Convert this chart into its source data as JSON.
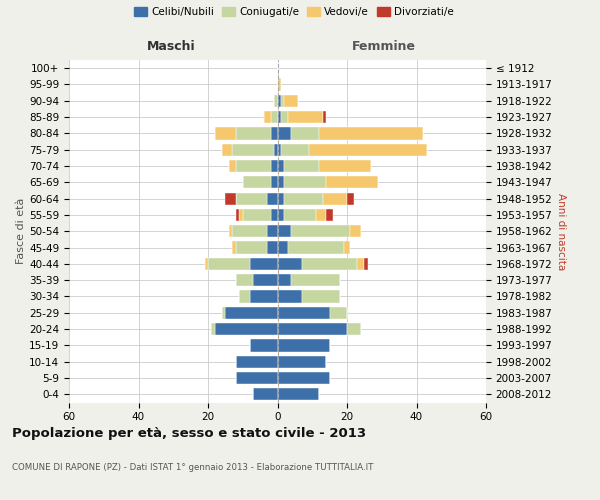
{
  "age_groups": [
    "0-4",
    "5-9",
    "10-14",
    "15-19",
    "20-24",
    "25-29",
    "30-34",
    "35-39",
    "40-44",
    "45-49",
    "50-54",
    "55-59",
    "60-64",
    "65-69",
    "70-74",
    "75-79",
    "80-84",
    "85-89",
    "90-94",
    "95-99",
    "100+"
  ],
  "birth_years": [
    "2008-2012",
    "2003-2007",
    "1998-2002",
    "1993-1997",
    "1988-1992",
    "1983-1987",
    "1978-1982",
    "1973-1977",
    "1968-1972",
    "1963-1967",
    "1958-1962",
    "1953-1957",
    "1948-1952",
    "1943-1947",
    "1938-1942",
    "1933-1937",
    "1928-1932",
    "1923-1927",
    "1918-1922",
    "1913-1917",
    "≤ 1912"
  ],
  "maschi": {
    "celibi": [
      7,
      12,
      12,
      8,
      18,
      15,
      8,
      7,
      8,
      3,
      3,
      2,
      3,
      2,
      2,
      1,
      2,
      0,
      0,
      0,
      0
    ],
    "coniugati": [
      0,
      0,
      0,
      0,
      1,
      1,
      3,
      5,
      12,
      9,
      10,
      8,
      9,
      8,
      10,
      12,
      10,
      2,
      1,
      0,
      0
    ],
    "vedovi": [
      0,
      0,
      0,
      0,
      0,
      0,
      0,
      0,
      1,
      1,
      1,
      1,
      0,
      0,
      2,
      3,
      6,
      2,
      0,
      0,
      0
    ],
    "divorziati": [
      0,
      0,
      0,
      0,
      0,
      0,
      0,
      0,
      0,
      0,
      0,
      1,
      3,
      0,
      0,
      0,
      0,
      0,
      0,
      0,
      0
    ]
  },
  "femmine": {
    "nubili": [
      12,
      15,
      14,
      15,
      20,
      15,
      7,
      4,
      7,
      3,
      4,
      2,
      2,
      2,
      2,
      1,
      4,
      1,
      1,
      0,
      0
    ],
    "coniugate": [
      0,
      0,
      0,
      0,
      4,
      5,
      11,
      14,
      16,
      16,
      17,
      9,
      11,
      12,
      10,
      8,
      8,
      2,
      1,
      0,
      0
    ],
    "vedove": [
      0,
      0,
      0,
      0,
      0,
      0,
      0,
      0,
      2,
      2,
      3,
      3,
      7,
      15,
      15,
      34,
      30,
      10,
      4,
      1,
      0
    ],
    "divorziate": [
      0,
      0,
      0,
      0,
      0,
      0,
      0,
      0,
      1,
      0,
      0,
      2,
      2,
      0,
      0,
      0,
      0,
      1,
      0,
      0,
      0
    ]
  },
  "colors": {
    "celibi": "#3d6fa8",
    "coniugati": "#c5d6a0",
    "vedovi": "#f5c86e",
    "divorziati": "#c0392b"
  },
  "xlim": 60,
  "title": "Popolazione per età, sesso e stato civile - 2013",
  "subtitle": "COMUNE DI RAPONE (PZ) - Dati ISTAT 1° gennaio 2013 - Elaborazione TUTTITALIA.IT",
  "ylabel_left": "Fasce di età",
  "ylabel_right": "Anni di nascita",
  "xlabel_maschi": "Maschi",
  "xlabel_femmine": "Femmine",
  "bg_color": "#f0f0eb",
  "plot_bg": "#ffffff"
}
